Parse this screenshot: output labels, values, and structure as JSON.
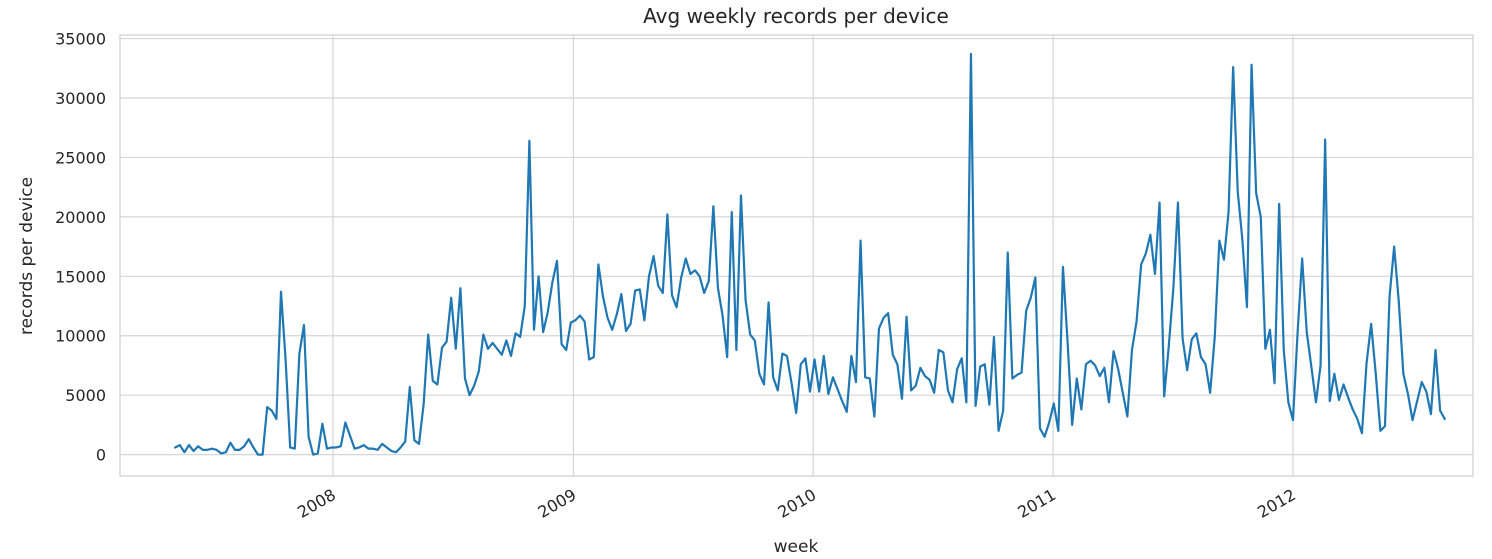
{
  "chart_data": {
    "type": "line",
    "title": "Avg weekly records per device",
    "xlabel": "week",
    "ylabel": "records per device",
    "grid": true,
    "legend": "none",
    "x_tick_labels": [
      "2008",
      "2009",
      "2010",
      "2011",
      "2012"
    ],
    "y_tick_labels": [
      "0",
      "5000",
      "10000",
      "15000",
      "20000",
      "25000",
      "30000",
      "35000"
    ],
    "y_ticks": [
      0,
      5000,
      10000,
      15000,
      20000,
      25000,
      30000,
      35000
    ],
    "xlim": [
      "2007-02-11",
      "2012-10-01"
    ],
    "ylim": [
      -1800,
      35300
    ],
    "series_color": "#1f77b4",
    "series": [
      {
        "x_start": "2007-05-06",
        "x_step_days": 7,
        "values": [
          600,
          800,
          200,
          800,
          300,
          700,
          400,
          400,
          500,
          400,
          100,
          200,
          1000,
          400,
          400,
          700,
          1300,
          600,
          0,
          0,
          4000,
          3700,
          3000,
          13700,
          8000,
          600,
          500,
          8500,
          10900,
          1500,
          0,
          100,
          2600,
          500,
          600,
          600,
          700,
          2700,
          1600,
          500,
          600,
          800,
          500,
          500,
          400,
          900,
          600,
          300,
          200,
          600,
          1100,
          5700,
          1200,
          900,
          4200,
          10100,
          6200,
          5900,
          9000,
          9500,
          13200,
          8900,
          14000,
          6400,
          5000,
          5800,
          7000,
          10100,
          8900,
          9400,
          8900,
          8400,
          9600,
          8300,
          10200,
          9900,
          12500,
          26400,
          10500,
          15000,
          10300,
          12000,
          14500,
          16300,
          9300,
          8800,
          11100,
          11300,
          11700,
          11200,
          8000,
          8200,
          16000,
          13300,
          11500,
          10500,
          11800,
          13500,
          10400,
          11000,
          13800,
          13900,
          11300,
          15000,
          16700,
          14200,
          13600,
          20200,
          13400,
          12400,
          14900,
          16500,
          15200,
          15500,
          15000,
          13600,
          14600,
          20900,
          14000,
          11700,
          8200,
          20400,
          8800,
          21800,
          13000,
          10100,
          9600,
          6800,
          5900,
          12800,
          6500,
          5400,
          8500,
          8300,
          6000,
          3500,
          7600,
          8100,
          5300,
          8000,
          5300,
          8300,
          5100,
          6500,
          5500,
          4500,
          3600,
          8300,
          6100,
          18000,
          6500,
          6400,
          3200,
          10600,
          11500,
          11900,
          8400,
          7600,
          4700,
          11600,
          5400,
          5800,
          7300,
          6600,
          6300,
          5200,
          8800,
          8600,
          5400,
          4400,
          7200,
          8100,
          4400,
          33700,
          4100,
          7400,
          7600,
          4200,
          9900,
          2000,
          3700,
          17000,
          6400,
          6700,
          6900,
          12100,
          13200,
          14900,
          2200,
          1500,
          2700,
          4300,
          2000,
          15800,
          9500,
          2500,
          6400,
          3800,
          7600,
          7900,
          7500,
          6600,
          7300,
          4400,
          8700,
          7200,
          5200,
          3200,
          8800,
          11200,
          16000,
          16900,
          18500,
          15200,
          21200,
          4900,
          9100,
          14000,
          21200,
          9800,
          7100,
          9700,
          10200,
          8200,
          7600,
          5200,
          9900,
          18000,
          16400,
          20400,
          32600,
          22100,
          18100,
          12400,
          32800,
          22000,
          20000,
          8900,
          10500,
          6000,
          21100,
          8800,
          4400,
          2900,
          10200,
          16500,
          10300,
          7400,
          4400,
          7500,
          26500,
          4500,
          6800,
          4600,
          5900,
          4800,
          3800,
          3000,
          1800,
          7700,
          11000,
          6800,
          2000,
          2400,
          13300,
          17500,
          12900,
          6800,
          5100,
          2900,
          4500,
          6100,
          5300,
          3400,
          8800,
          3700,
          3000
        ]
      }
    ]
  }
}
